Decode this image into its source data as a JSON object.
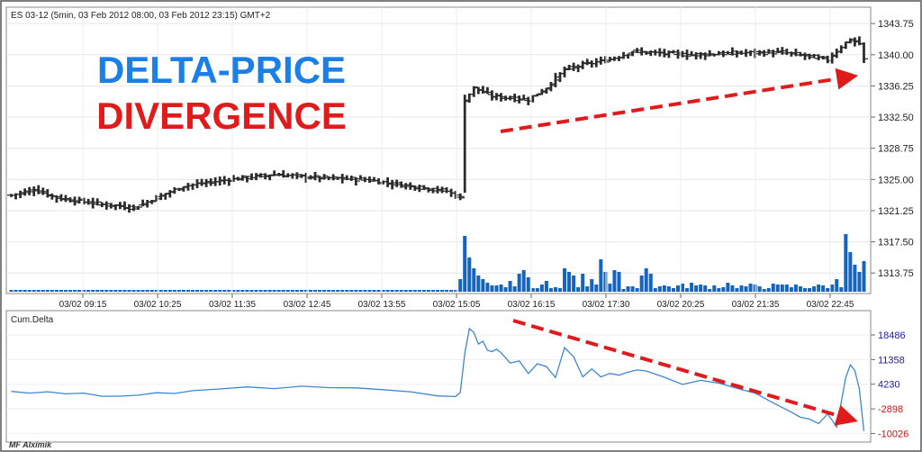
{
  "header": {
    "instrument_info": "ES 03-12 (5min, 03 Feb 2012 08:00, 03 Feb 2012 23:15) GMT+2"
  },
  "overlay": {
    "title_line1": "DELTA-PRICE",
    "title_line2": "DIVERGENCE",
    "title_line1_color": "#1a7fe6",
    "title_line2_color": "#e01b1b",
    "arrow_color": "#e01b1b"
  },
  "watermark": "MF Alximik",
  "colors": {
    "bar": "#2b2b2b",
    "volume": "#1565c0",
    "delta_line": "#3d86d2",
    "positive_axis_label": "#1a1aa8",
    "negative_axis_label": "#d01010"
  },
  "chart_data": [
    {
      "type": "ohlc",
      "name": "price",
      "y_ticks": [
        1313.75,
        1317.5,
        1321.25,
        1325.0,
        1328.75,
        1332.5,
        1336.25,
        1340.0,
        1343.75
      ],
      "y_tick_labels": [
        "1313.75",
        "1317.50",
        "1321.25",
        "1325.00",
        "1328.75",
        "1332.50",
        "1336.25",
        "1340.00",
        "1343.75"
      ],
      "ylim": [
        1311.5,
        1345.5
      ],
      "x_tick_labels": [
        "03/02 09:15",
        "03/02 10:25",
        "03/02 11:35",
        "03/02 12:45",
        "03/02 13:55",
        "03/02 15:05",
        "03/02 16:15",
        "03/02 17:30",
        "03/02 20:25",
        "03/02 21:35",
        "03/02 22:45"
      ],
      "anchors_close": [
        [
          0,
          1323.1
        ],
        [
          5,
          1323.8
        ],
        [
          10,
          1322.8
        ],
        [
          20,
          1322.0
        ],
        [
          27,
          1321.6
        ],
        [
          32,
          1322.8
        ],
        [
          38,
          1324.2
        ],
        [
          48,
          1325.0
        ],
        [
          58,
          1325.6
        ],
        [
          68,
          1325.2
        ],
        [
          78,
          1325.0
        ],
        [
          88,
          1324.2
        ],
        [
          96,
          1323.6
        ],
        [
          99,
          1322.8
        ],
        [
          100,
          1334.6
        ],
        [
          102,
          1336.0
        ],
        [
          106,
          1335.0
        ],
        [
          110,
          1334.8
        ],
        [
          114,
          1334.6
        ],
        [
          118,
          1336.0
        ],
        [
          122,
          1338.2
        ],
        [
          126,
          1338.8
        ],
        [
          130,
          1339.2
        ],
        [
          134,
          1339.8
        ],
        [
          137,
          1340.4
        ],
        [
          142,
          1340.2
        ],
        [
          150,
          1340.0
        ],
        [
          160,
          1340.2
        ],
        [
          170,
          1340.3
        ],
        [
          176,
          1339.8
        ],
        [
          180,
          1339.4
        ],
        [
          183,
          1341.0
        ],
        [
          185,
          1341.8
        ],
        [
          187,
          1341.3
        ],
        [
          188,
          1339.4
        ]
      ],
      "bar_count": 189
    },
    {
      "type": "bar",
      "name": "volume",
      "spikes": [
        [
          99,
          14
        ],
        [
          100,
          62
        ],
        [
          101,
          38
        ],
        [
          102,
          26
        ],
        [
          103,
          18
        ],
        [
          104,
          14
        ],
        [
          105,
          10
        ],
        [
          110,
          12
        ],
        [
          112,
          20
        ],
        [
          113,
          24
        ],
        [
          114,
          16
        ],
        [
          118,
          12
        ],
        [
          122,
          26
        ],
        [
          123,
          22
        ],
        [
          124,
          18
        ],
        [
          126,
          20
        ],
        [
          128,
          14
        ],
        [
          130,
          36
        ],
        [
          131,
          22
        ],
        [
          133,
          24
        ],
        [
          134,
          22
        ],
        [
          139,
          18
        ],
        [
          140,
          26
        ],
        [
          141,
          20
        ],
        [
          150,
          10
        ],
        [
          158,
          10
        ],
        [
          170,
          8
        ],
        [
          182,
          14
        ],
        [
          184,
          64
        ],
        [
          185,
          44
        ],
        [
          186,
          30
        ],
        [
          187,
          22
        ],
        [
          188,
          34
        ]
      ],
      "base": 2
    },
    {
      "type": "line",
      "name": "Cum.Delta",
      "y_ticks": [
        -10026,
        -2898,
        4230,
        11358,
        18486
      ],
      "y_tick_labels": [
        "-10026",
        "-2898",
        "4230",
        "11358",
        "18486"
      ],
      "ylim": [
        -12000,
        25000
      ],
      "x": [
        0,
        4,
        8,
        12,
        16,
        20,
        24,
        28,
        32,
        36,
        40,
        46,
        52,
        58,
        64,
        70,
        76,
        82,
        88,
        94,
        98,
        99,
        100,
        101,
        102,
        103,
        104,
        105,
        106,
        107,
        108,
        110,
        112,
        114,
        116,
        118,
        120,
        122,
        124,
        126,
        128,
        130,
        132,
        134,
        136,
        138,
        140,
        144,
        148,
        152,
        156,
        160,
        164,
        168,
        172,
        174,
        176,
        178,
        180,
        182,
        184,
        185,
        186,
        187,
        188
      ],
      "y": [
        2000,
        1800,
        1900,
        1600,
        1500,
        900,
        600,
        1200,
        1600,
        1700,
        2200,
        3000,
        3300,
        3100,
        3500,
        3400,
        3000,
        2800,
        1900,
        1000,
        500,
        2000,
        13000,
        20500,
        19000,
        16000,
        16500,
        14200,
        13500,
        14500,
        13200,
        10500,
        10800,
        7500,
        10000,
        9500,
        6000,
        15000,
        12000,
        6500,
        8500,
        6500,
        7200,
        7000,
        7600,
        8500,
        7900,
        6400,
        4000,
        5500,
        4400,
        3200,
        1500,
        -1000,
        -4000,
        -5200,
        -6000,
        -7000,
        -4500,
        -8000,
        6000,
        10000,
        8000,
        3000,
        -9500
      ]
    }
  ]
}
